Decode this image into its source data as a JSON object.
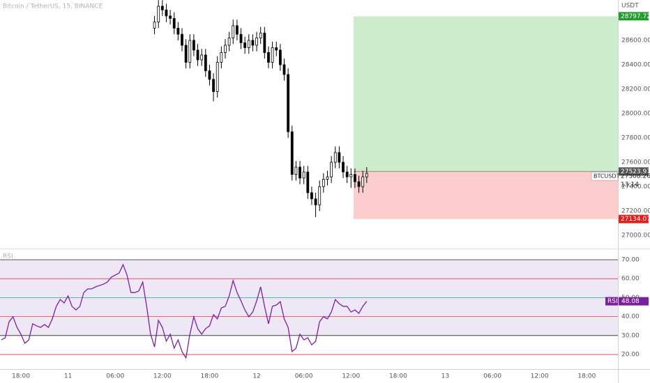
{
  "header": {
    "legend": "Bitcoin / TetherUS, 15, BINANCE",
    "currency": "USDT"
  },
  "chart_data": [
    {
      "type": "candlestick",
      "x": [
        35,
        35.5,
        36,
        36.5,
        37,
        37.5,
        38,
        38.5,
        39,
        39.5,
        40,
        40.5,
        41,
        41.5,
        42,
        42.5,
        43,
        43.5,
        44,
        44.5,
        45,
        45.5,
        46,
        46.5,
        47,
        47.5,
        48,
        48.5,
        49,
        49.5,
        50,
        50.5,
        51,
        51.5,
        52,
        52.5,
        53,
        53.5,
        54,
        54.5,
        55,
        55.5,
        56,
        56.5,
        57,
        57.5,
        58,
        58.5,
        59,
        59.5,
        60,
        60.5,
        61,
        61.5,
        62
      ],
      "open": [
        28700,
        28750,
        28880,
        28850,
        28800,
        28780,
        28700,
        28650,
        28560,
        28420,
        28600,
        28520,
        28440,
        28480,
        28350,
        28280,
        28180,
        28420,
        28500,
        28560,
        28620,
        28720,
        28650,
        28580,
        28540,
        28600,
        28560,
        28620,
        28660,
        28500,
        28420,
        28540,
        28520,
        28400,
        28320,
        27850,
        27500,
        27560,
        27470,
        27520,
        27350,
        27300,
        27250,
        27400,
        27460,
        27480,
        27600,
        27680,
        27600,
        27520,
        27480,
        27500,
        27440,
        27400,
        27480
      ],
      "high": [
        28800,
        28930,
        28930,
        28900,
        28850,
        28830,
        28750,
        28700,
        28610,
        28650,
        28650,
        28570,
        28530,
        28530,
        28400,
        28330,
        28470,
        28550,
        28610,
        28670,
        28770,
        28770,
        28700,
        28630,
        28650,
        28650,
        28670,
        28710,
        28710,
        28550,
        28590,
        28590,
        28570,
        28450,
        28370,
        27900,
        27610,
        27610,
        27570,
        27570,
        27400,
        27350,
        27450,
        27510,
        27530,
        27650,
        27730,
        27730,
        27650,
        27570,
        27550,
        27550,
        27490,
        27530,
        27560
      ],
      "low": [
        28650,
        28700,
        28800,
        28750,
        28730,
        28650,
        28600,
        28510,
        28370,
        28370,
        28470,
        28390,
        28390,
        28300,
        28230,
        28100,
        28130,
        28370,
        28450,
        28510,
        28570,
        28600,
        28530,
        28490,
        28490,
        28510,
        28510,
        28570,
        28450,
        28370,
        28370,
        28470,
        28350,
        28270,
        27800,
        27450,
        27450,
        27420,
        27420,
        27300,
        27250,
        27150,
        27200,
        27350,
        27410,
        27430,
        27550,
        27550,
        27470,
        27430,
        27390,
        27390,
        27350,
        27350,
        27430
      ],
      "close": [
        28750,
        28880,
        28850,
        28800,
        28780,
        28700,
        28650,
        28560,
        28420,
        28600,
        28520,
        28440,
        28480,
        28350,
        28280,
        28180,
        28420,
        28500,
        28560,
        28620,
        28720,
        28650,
        28580,
        28540,
        28600,
        28560,
        28620,
        28660,
        28500,
        28420,
        28540,
        28520,
        28400,
        28320,
        27850,
        27500,
        27560,
        27470,
        27520,
        27350,
        27300,
        27250,
        27400,
        27460,
        27480,
        27600,
        27680,
        27600,
        27520,
        27480,
        27500,
        27440,
        27400,
        27480,
        27508.26
      ],
      "up_color": "#ffffff",
      "down_color": "#000000",
      "xlim": [
        15.34,
        93.96
      ],
      "ylim": [
        26903,
        28931
      ],
      "yticks": [
        {
          "value": 27000,
          "label": "27000.00"
        },
        {
          "value": 27200,
          "label": "27200.00"
        },
        {
          "value": 27400,
          "label": "27400.00"
        },
        {
          "value": 27600,
          "label": "27600.00"
        },
        {
          "value": 27800,
          "label": "27800.00"
        },
        {
          "value": 28000,
          "label": "28000.00"
        },
        {
          "value": 28200,
          "label": "28200.00"
        },
        {
          "value": 28400,
          "label": "28400.00"
        },
        {
          "value": 28600,
          "label": "28600.00"
        }
      ],
      "position": {
        "x_start": 60.32,
        "target": 28797.72,
        "entry": 27523.97,
        "stop": 27134.07,
        "target_color": "#cdeccb",
        "stop_color": "#fdcccc",
        "target_tag_color": "#1f9c2b",
        "entry_tag_color": "#555555",
        "stop_tag_color": "#e51c1c"
      },
      "last_price": {
        "symbol": "BTCUSDT",
        "value": 27508.26,
        "countdown": "13:14"
      }
    },
    {
      "type": "line",
      "title": "RSI",
      "x": [
        15.5,
        16,
        16.5,
        17,
        17.5,
        18,
        18.5,
        19,
        19.5,
        20,
        20.5,
        21,
        21.5,
        22,
        22.5,
        23,
        23.5,
        24,
        24.5,
        25,
        25.5,
        26,
        26.5,
        27,
        27.5,
        28,
        28.5,
        29,
        29.5,
        30,
        30.5,
        31,
        31.5,
        32,
        32.5,
        33,
        33.5,
        34,
        34.5,
        35,
        35.5,
        36,
        36.5,
        37,
        37.5,
        38,
        38.5,
        39,
        39.5,
        40,
        40.5,
        41,
        41.5,
        42,
        42.5,
        43,
        43.5,
        44,
        44.5,
        45,
        45.5,
        46,
        46.5,
        47,
        47.5,
        48,
        48.5,
        49,
        49.5,
        50,
        50.5,
        51,
        51.5,
        52,
        52.5,
        53,
        53.5,
        54,
        54.5,
        55,
        55.5,
        56,
        56.5,
        57,
        57.5,
        58,
        58.5,
        59,
        59.5,
        60,
        60.5,
        61,
        61.5,
        62
      ],
      "series": [
        {
          "name": "RSI",
          "color": "#7b1fa2",
          "values": [
            27.7,
            28.8,
            37.3,
            39.9,
            34.3,
            30.7,
            25.9,
            27.7,
            36.2,
            35.1,
            34.3,
            35.8,
            34.3,
            38.8,
            45.4,
            49.0,
            47.2,
            50.9,
            45.4,
            43.5,
            45.4,
            52.7,
            54.6,
            54.6,
            55.7,
            56.4,
            57.1,
            58.2,
            60.8,
            61.9,
            63.0,
            67.4,
            61.9,
            52.7,
            52.7,
            53.5,
            58.2,
            45.4,
            30.7,
            24.0,
            38.0,
            34.3,
            27.0,
            30.7,
            23.3,
            27.7,
            21.5,
            18.2,
            30.7,
            39.9,
            33.6,
            30.7,
            33.6,
            35.1,
            41.0,
            38.8,
            44.6,
            45.4,
            50.9,
            59.0,
            52.7,
            48.3,
            43.5,
            39.9,
            42.4,
            48.3,
            55.7,
            45.4,
            36.2,
            45.4,
            46.1,
            47.9,
            38.8,
            34.3,
            21.5,
            23.3,
            30.7,
            27.7,
            28.8,
            25.1,
            26.9,
            37.3,
            39.9,
            38.8,
            42.4,
            49.0,
            46.8,
            45.4,
            45.4,
            42.4,
            43.5,
            41.7,
            45.4,
            48.08
          ]
        }
      ],
      "xlim": [
        15.34,
        93.96
      ],
      "ylim": [
        12.3,
        75.5
      ],
      "yticks": [
        {
          "value": 20,
          "label": "20.00"
        },
        {
          "value": 30,
          "label": "30.00"
        },
        {
          "value": 40,
          "label": "40.00"
        },
        {
          "value": 50,
          "label": "50.00"
        },
        {
          "value": 60,
          "label": "60.00"
        },
        {
          "value": 70,
          "label": "70.00"
        }
      ],
      "levels": [
        20,
        30,
        40,
        50,
        60,
        70
      ],
      "level_colors": [
        "#e53935",
        "#222222",
        "#e53935",
        "#26a69a",
        "#e53935",
        "#222222"
      ],
      "band": [
        30,
        70
      ],
      "band_color": "#ede7f6",
      "xticks": [
        {
          "value": 18,
          "label": "18:00"
        },
        {
          "value": 24,
          "label": "11"
        },
        {
          "value": 30,
          "label": "06:00"
        },
        {
          "value": 36,
          "label": "12:00"
        },
        {
          "value": 42,
          "label": "18:00"
        },
        {
          "value": 48,
          "label": "12"
        },
        {
          "value": 54,
          "label": "06:00"
        },
        {
          "value": 60,
          "label": "12:00"
        },
        {
          "value": 66,
          "label": "18:00"
        },
        {
          "value": 72,
          "label": "13"
        },
        {
          "value": 78,
          "label": "06:00"
        },
        {
          "value": 84,
          "label": "12:00"
        },
        {
          "value": 90,
          "label": "18:00"
        }
      ]
    }
  ]
}
